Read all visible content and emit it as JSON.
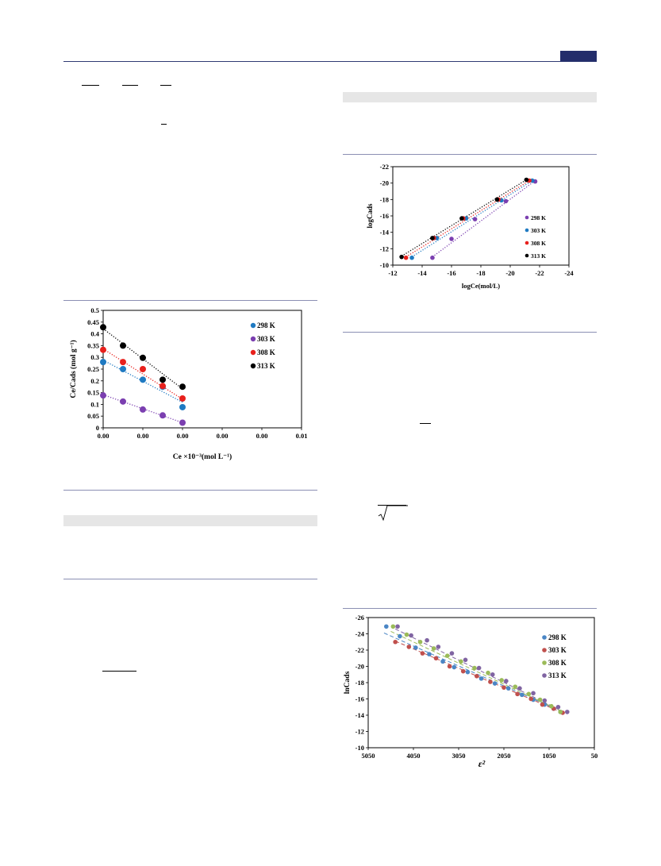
{
  "colors": {
    "rule": "#2f3a73",
    "header_block": "#232d6b",
    "table_bar": "#e6e6e6"
  },
  "chart_data": [
    {
      "type": "scatter",
      "title": "",
      "xlabel": "Ce ×10⁻³(mol L⁻¹)",
      "ylabel": "Ce/Cads (mol g⁻¹)",
      "xlim": [
        0,
        0.01
      ],
      "ylim": [
        0,
        0.5
      ],
      "x_tick_labels": [
        "0.00",
        "0.00",
        "0.00",
        "0.00",
        "0.00",
        "0.01"
      ],
      "y_tick_labels": [
        "0",
        "0.05",
        "0.1",
        "0.15",
        "0.2",
        "0.25",
        "0.3",
        "0.35",
        "0.4",
        "0.45",
        "0.5"
      ],
      "legend_position": "top-right",
      "trendlines": "linear dotted",
      "series": [
        {
          "name": "298 K",
          "color": "#1f7ac2",
          "x": [
            0.0,
            0.001,
            0.002,
            0.003,
            0.004
          ],
          "y": [
            0.28,
            0.25,
            0.205,
            0.175,
            0.088
          ],
          "fit": [
            0.288,
            0.109
          ]
        },
        {
          "name": "303 K",
          "color": "#7b3fb0",
          "x": [
            0.0,
            0.001,
            0.002,
            0.003,
            0.004
          ],
          "y": [
            0.138,
            0.112,
            0.078,
            0.053,
            0.022
          ],
          "fit": [
            0.141,
            0.022
          ]
        },
        {
          "name": "308 K",
          "color": "#e8201c",
          "x": [
            0.0,
            0.001,
            0.002,
            0.003,
            0.004
          ],
          "y": [
            0.332,
            0.28,
            0.25,
            0.178,
            0.125
          ],
          "fit": [
            0.336,
            0.122
          ]
        },
        {
          "name": "313 K",
          "color": "#000000",
          "x": [
            0.0,
            0.001,
            0.002,
            0.003,
            0.004
          ],
          "y": [
            0.428,
            0.35,
            0.298,
            0.205,
            0.175
          ],
          "fit": [
            0.422,
            0.166
          ]
        }
      ]
    },
    {
      "type": "scatter",
      "title": "",
      "xlabel": "logCe(mol/L)",
      "ylabel": "logCads",
      "xlim": [
        -12,
        -24
      ],
      "ylim": [
        -10,
        -22
      ],
      "x_tick_labels": [
        "-12",
        "-14",
        "-16",
        "-18",
        "-20",
        "-22",
        "-24"
      ],
      "y_tick_labels": [
        "-10",
        "-12",
        "-14",
        "-16",
        "-18",
        "-20",
        "-22"
      ],
      "legend_position": "right",
      "trendlines": "linear dotted",
      "series": [
        {
          "name": "298 K",
          "color": "#7b3fb0",
          "x": [
            -14.7,
            -16.0,
            -17.6,
            -19.7,
            -21.7
          ],
          "y": [
            -10.9,
            -13.2,
            -15.6,
            -17.8,
            -20.2
          ],
          "fit": [
            [
              -14.7,
              -11.0
            ],
            [
              -21.7,
              -20.3
            ]
          ]
        },
        {
          "name": "303 K",
          "color": "#1f7ac2",
          "x": [
            -13.3,
            -15.0,
            -17.0,
            -19.4,
            -21.5
          ],
          "y": [
            -10.9,
            -13.3,
            -15.7,
            -17.9,
            -20.3
          ],
          "fit": [
            [
              -13.3,
              -11.0
            ],
            [
              -21.5,
              -20.3
            ]
          ]
        },
        {
          "name": "308 K",
          "color": "#e8201c",
          "x": [
            -12.9,
            -14.8,
            -16.8,
            -19.2,
            -21.3
          ],
          "y": [
            -10.9,
            -13.3,
            -15.7,
            -18.0,
            -20.3
          ],
          "fit": [
            [
              -12.9,
              -11.0
            ],
            [
              -21.3,
              -20.3
            ]
          ]
        },
        {
          "name": "313 K",
          "color": "#000000",
          "x": [
            -12.6,
            -14.7,
            -16.7,
            -19.1,
            -21.1
          ],
          "y": [
            -11.0,
            -13.3,
            -15.7,
            -18.0,
            -20.4
          ],
          "fit": [
            [
              -12.6,
              -11.1
            ],
            [
              -21.1,
              -20.4
            ]
          ]
        }
      ]
    },
    {
      "type": "scatter",
      "title": "",
      "xlabel": "ε²",
      "ylabel": "lnCads",
      "xlim": [
        5050,
        50
      ],
      "ylim": [
        -10,
        -26
      ],
      "x_tick_labels": [
        "5050",
        "4050",
        "3050",
        "2050",
        "1050",
        "50"
      ],
      "y_tick_labels": [
        "-10",
        "-12",
        "-14",
        "-16",
        "-18",
        "-20",
        "-22",
        "-24",
        "-26"
      ],
      "legend_position": "top-right",
      "trendlines": "linear dashed",
      "series": [
        {
          "name": "298 K",
          "color": "#4b86c5",
          "x": [
            4650,
            4350,
            4000,
            3700,
            3400,
            3150,
            2850,
            2550,
            2250,
            1950,
            1650,
            1400,
            1150,
            950,
            800
          ],
          "y": [
            -24.9,
            -23.7,
            -22.3,
            -21.5,
            -20.6,
            -19.9,
            -19.3,
            -18.5,
            -17.9,
            -17.3,
            -16.5,
            -15.9,
            -15.3,
            -14.8,
            -14.4
          ],
          "fit": [
            [
              4700,
              -24.1
            ],
            [
              750,
              -14.4
            ]
          ]
        },
        {
          "name": "303 K",
          "color": "#c0504d",
          "x": [
            4450,
            4150,
            3850,
            3550,
            3250,
            2950,
            2650,
            2350,
            2050,
            1750,
            1450,
            1200,
            950,
            750
          ],
          "y": [
            -23.0,
            -22.4,
            -21.6,
            -21.0,
            -20.0,
            -19.4,
            -18.8,
            -18.1,
            -17.4,
            -16.6,
            -16.0,
            -15.3,
            -14.8,
            -14.3
          ],
          "fit": [
            [
              4450,
              -23.1
            ],
            [
              750,
              -14.3
            ]
          ]
        },
        {
          "name": "308 K",
          "color": "#9bbb59",
          "x": [
            4500,
            4200,
            3900,
            3600,
            3300,
            3000,
            2700,
            2400,
            2100,
            1800,
            1500,
            1250,
            1000,
            800
          ],
          "y": [
            -24.9,
            -23.9,
            -23.0,
            -22.2,
            -21.3,
            -20.6,
            -19.8,
            -19.2,
            -18.3,
            -17.5,
            -16.6,
            -15.9,
            -15.1,
            -14.4
          ],
          "fit": [
            [
              4550,
              -24.3
            ],
            [
              700,
              -14.3
            ]
          ]
        },
        {
          "name": "313 K",
          "color": "#8064a2",
          "x": [
            4400,
            4100,
            3750,
            3500,
            3200,
            2900,
            2600,
            2300,
            2000,
            1700,
            1400,
            1150,
            850,
            650
          ],
          "y": [
            -24.9,
            -23.8,
            -23.2,
            -22.4,
            -21.6,
            -20.8,
            -19.8,
            -19.0,
            -18.2,
            -17.3,
            -16.7,
            -15.8,
            -15.0,
            -14.4
          ],
          "fit": [
            [
              4450,
              -24.6
            ],
            [
              650,
              -14.2
            ]
          ]
        }
      ]
    }
  ]
}
